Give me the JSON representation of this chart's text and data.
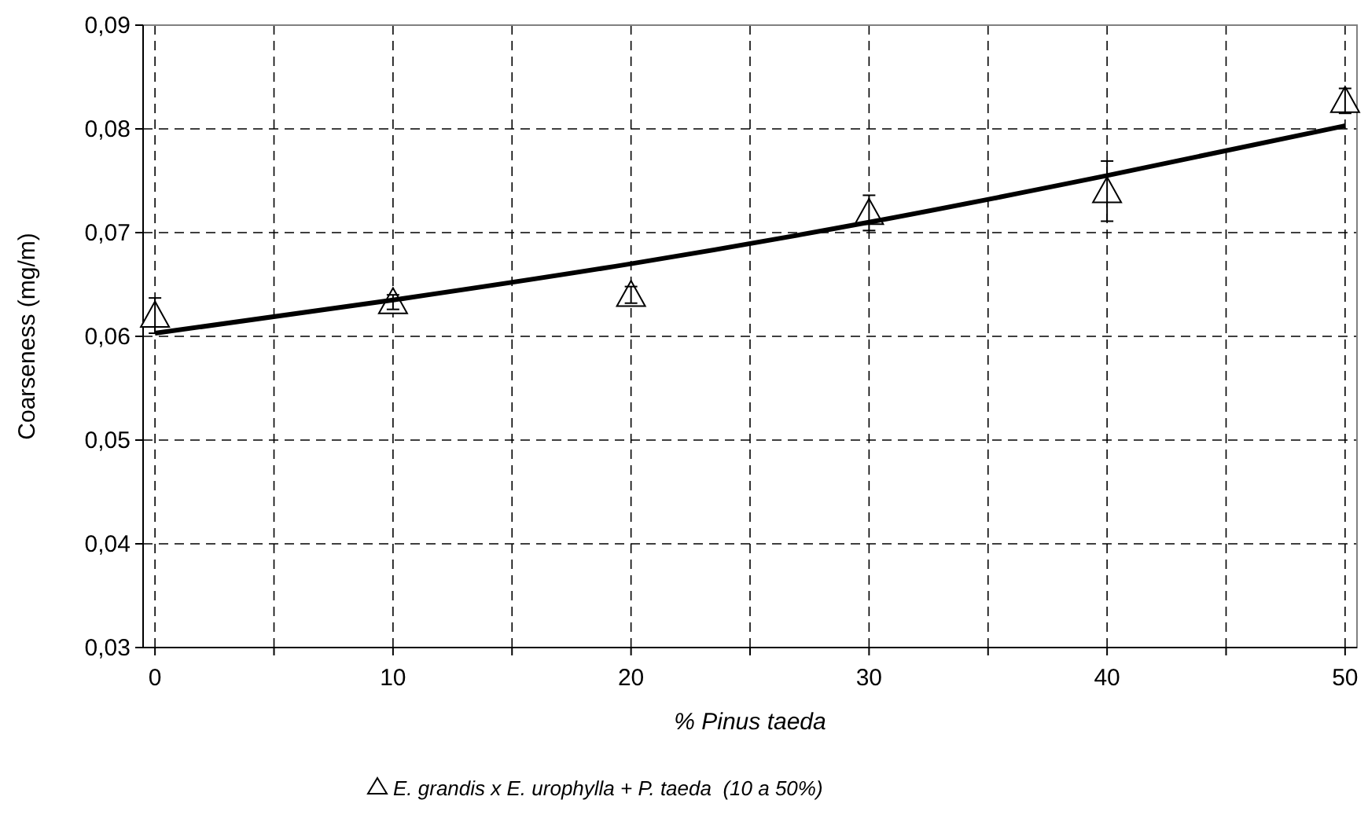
{
  "chart_data": {
    "type": "scatter",
    "xlabel": "% Pinus taeda",
    "ylabel": "Coarseness (mg/m)",
    "xlim": [
      -0.5,
      50.5
    ],
    "ylim": [
      0.03,
      0.09
    ],
    "xticks": [
      0,
      {
        "value": 5,
        "label": null
      },
      10,
      {
        "value": 15,
        "label": null
      },
      20,
      {
        "value": 25,
        "label": null
      },
      30,
      {
        "value": 35,
        "label": null
      },
      40,
      {
        "value": 45,
        "label": null
      },
      50
    ],
    "yticks": [
      {
        "value": 0.03,
        "label": "0,03"
      },
      {
        "value": 0.04,
        "label": "0,04"
      },
      {
        "value": 0.05,
        "label": "0,05"
      },
      {
        "value": 0.06,
        "label": "0,06"
      },
      {
        "value": 0.07,
        "label": "0,07"
      },
      {
        "value": 0.08,
        "label": "0,08"
      },
      {
        "value": 0.09,
        "label": "0,09"
      }
    ],
    "grid": true,
    "legend": "bottom",
    "series": [
      {
        "name": "E. grandis x E. urophylla + P. taeda  (10 a 50%)",
        "marker": "triangle",
        "color": "#000000",
        "x": [
          0,
          10,
          20,
          30,
          40,
          50
        ],
        "values": [
          0.062,
          0.0633,
          0.064,
          0.0719,
          0.074,
          0.0827
        ],
        "errors": [
          0.0017,
          0.0007,
          0.0008,
          0.0017,
          0.0029,
          0.0012
        ]
      },
      {
        "type": "line",
        "color": "#000000",
        "marker": "none",
        "x": [
          0,
          10,
          20,
          30,
          40,
          50
        ],
        "values": [
          0.0603,
          0.0635,
          0.067,
          0.071,
          0.0755,
          0.0803
        ]
      }
    ]
  }
}
